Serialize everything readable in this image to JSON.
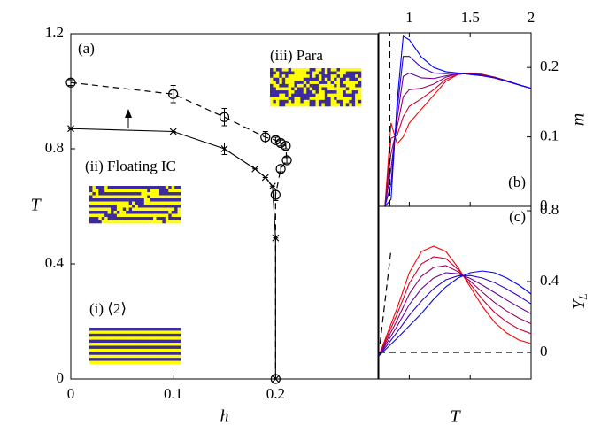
{
  "chart_data": [
    {
      "type": "line",
      "x_label": "h",
      "y_label": "T",
      "xlim": [
        0,
        0.3
      ],
      "ylim": [
        0,
        1.2
      ],
      "xticks": [
        0,
        0.1,
        0.2
      ],
      "yticks": [
        0,
        0.4,
        0.8,
        1.2
      ],
      "annotations": [
        "(a)",
        "(iii) Para",
        "(ii) Floating IC",
        "(i) ⟨2⟩"
      ],
      "series": [
        {
          "color": "#000000",
          "linestyle": "dashed",
          "marker": "circle",
          "x": [
            0,
            0.1,
            0.15,
            0.19,
            0.2,
            0.205,
            0.21,
            0.211,
            0.205,
            0.2,
            0.2
          ],
          "values": [
            1.03,
            0.99,
            0.91,
            0.84,
            0.83,
            0.82,
            0.81,
            0.76,
            0.73,
            0.64,
            0
          ],
          "errors": [
            0.01,
            0.03,
            0.03,
            0.02,
            0.01,
            0.01,
            0.01,
            0.01,
            0.01,
            0.02,
            0
          ]
        },
        {
          "color": "#000000",
          "linestyle": "solid",
          "marker": "x",
          "x": [
            0,
            0.1,
            0.15,
            0.18,
            0.19,
            0.197,
            0.2,
            0.2
          ],
          "values": [
            0.87,
            0.86,
            0.8,
            0.73,
            0.7,
            0.67,
            0.49,
            0
          ],
          "errors": [
            0,
            0,
            0.02,
            0,
            0,
            0,
            0,
            0
          ]
        }
      ]
    },
    {
      "type": "line",
      "y_label": "m",
      "panel": "(b)",
      "xlim": [
        0.75,
        2
      ],
      "ylim": [
        0,
        0.25
      ],
      "xticks": [
        1,
        1.5,
        2
      ],
      "yticks": [
        0,
        0.1,
        0.2
      ],
      "x": [
        0.8,
        0.85,
        0.9,
        0.95,
        1.0,
        1.1,
        1.2,
        1.3,
        1.4,
        1.5,
        1.6,
        1.7,
        1.8,
        1.9,
        2.0
      ],
      "series": [
        {
          "color": "#ff0000",
          "values": [
            0,
            0.12,
            0.09,
            0.1,
            0.12,
            0.14,
            0.16,
            0.18,
            0.19,
            0.192,
            0.19,
            0.186,
            0.181,
            0.175,
            0.17
          ]
        },
        {
          "color": "#cc0033",
          "values": [
            0,
            0.098,
            0.102,
            0.129,
            0.144,
            0.155,
            0.168,
            0.183,
            0.19,
            0.192,
            0.19,
            0.186,
            0.181,
            0.175,
            0.17
          ]
        },
        {
          "color": "#990066",
          "values": [
            0,
            0.076,
            0.114,
            0.158,
            0.168,
            0.17,
            0.176,
            0.186,
            0.191,
            0.191,
            0.189,
            0.186,
            0.181,
            0.175,
            0.17
          ]
        },
        {
          "color": "#660099",
          "values": [
            0,
            0.054,
            0.126,
            0.187,
            0.192,
            0.185,
            0.184,
            0.188,
            0.191,
            0.191,
            0.189,
            0.185,
            0.18,
            0.175,
            0.17
          ]
        },
        {
          "color": "#3300cc",
          "values": [
            0,
            0.032,
            0.138,
            0.216,
            0.216,
            0.2,
            0.192,
            0.191,
            0.192,
            0.19,
            0.188,
            0.185,
            0.18,
            0.175,
            0.17
          ]
        },
        {
          "color": "#0000ff",
          "values": [
            0,
            0.01,
            0.15,
            0.245,
            0.24,
            0.215,
            0.2,
            0.194,
            0.192,
            0.19,
            0.188,
            0.185,
            0.18,
            0.175,
            0.17
          ]
        },
        {
          "color": "#000000",
          "linestyle": "dashed",
          "x": [
            0.84,
            0.84
          ],
          "values": [
            0,
            0.25
          ]
        }
      ]
    },
    {
      "type": "line",
      "x_label": "T",
      "y_label": "Y",
      "y_label_sub": "L",
      "panel": "(c)",
      "xlim": [
        0.75,
        2
      ],
      "ylim": [
        -0.15,
        0.825
      ],
      "xticks": [
        1,
        1.5,
        2
      ],
      "yticks": [
        0,
        0.4,
        0.8
      ],
      "x": [
        0.75,
        0.9,
        1.0,
        1.1,
        1.2,
        1.3,
        1.4,
        1.5,
        1.6,
        1.7,
        1.8,
        1.9,
        2.0
      ],
      "series": [
        {
          "color": "#ff0000",
          "values": [
            -0.02,
            0.25,
            0.45,
            0.57,
            0.6,
            0.57,
            0.48,
            0.37,
            0.26,
            0.17,
            0.11,
            0.07,
            0.05
          ]
        },
        {
          "color": "#cc0033",
          "values": [
            -0.02,
            0.216,
            0.39,
            0.5,
            0.54,
            0.53,
            0.468,
            0.386,
            0.3,
            0.226,
            0.172,
            0.132,
            0.106
          ]
        },
        {
          "color": "#990066",
          "values": [
            -0.02,
            0.182,
            0.33,
            0.43,
            0.48,
            0.49,
            0.456,
            0.402,
            0.34,
            0.282,
            0.234,
            0.194,
            0.162
          ]
        },
        {
          "color": "#660099",
          "values": [
            -0.02,
            0.148,
            0.27,
            0.36,
            0.42,
            0.45,
            0.444,
            0.418,
            0.38,
            0.338,
            0.296,
            0.256,
            0.218
          ]
        },
        {
          "color": "#3300cc",
          "values": [
            -0.02,
            0.114,
            0.21,
            0.29,
            0.36,
            0.41,
            0.432,
            0.434,
            0.42,
            0.394,
            0.358,
            0.318,
            0.274
          ]
        },
        {
          "color": "#0000ff",
          "values": [
            -0.02,
            0.08,
            0.15,
            0.22,
            0.3,
            0.37,
            0.42,
            0.45,
            0.46,
            0.45,
            0.42,
            0.38,
            0.33
          ]
        },
        {
          "color": "#000000",
          "linestyle": "dashed",
          "x": [
            0.76,
            0.85
          ],
          "values": [
            0.05,
            0.58
          ]
        },
        {
          "color": "#000000",
          "linestyle": "dashed",
          "x": [
            0.75,
            2
          ],
          "values": [
            0,
            0
          ]
        }
      ]
    }
  ]
}
